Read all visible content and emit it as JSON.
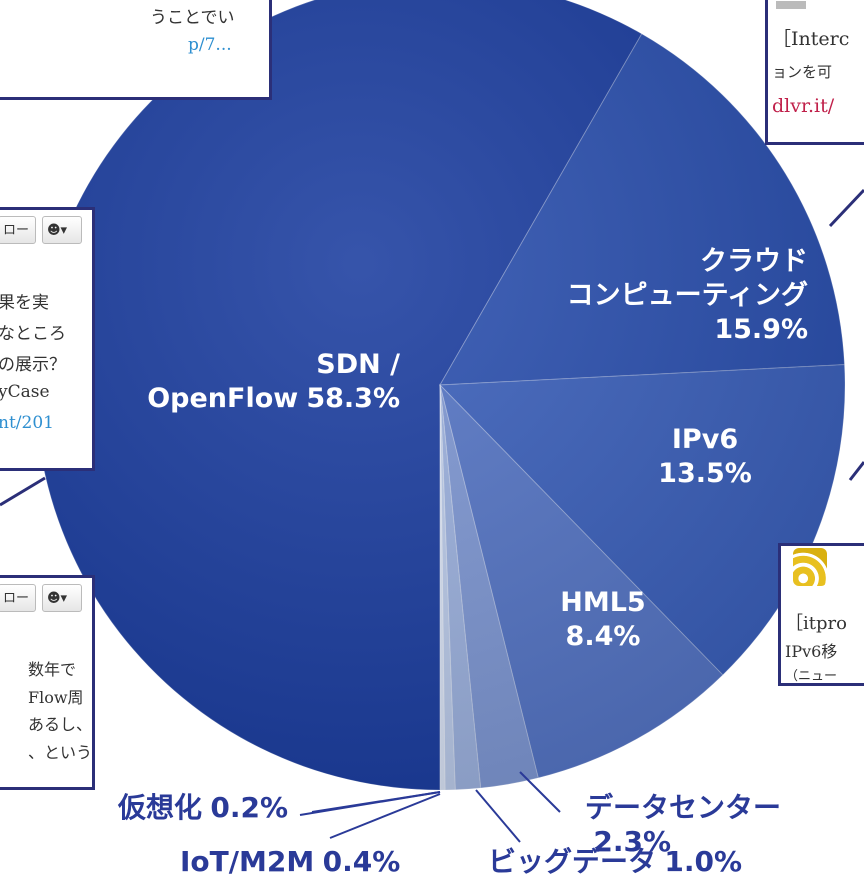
{
  "chart_data": {
    "type": "pie",
    "categories": [
      "SDN /\nOpenFlow",
      "クラウド\nコンピューティング",
      "IPv6",
      "HML5",
      "データセンター",
      "ビッグデータ",
      "IoT/M2M",
      "仮想化"
    ],
    "values": [
      58.3,
      15.9,
      13.5,
      8.4,
      2.3,
      1.0,
      0.4,
      0.2
    ],
    "value_labels": [
      "58.3%",
      "15.9%",
      "13.5%",
      "8.4%",
      "2.3%",
      "1.0%",
      "0.4%",
      "0.2%"
    ],
    "colors": [
      "#1b3d9f",
      "#2a4fae",
      "#3a5fba",
      "#5474c4",
      "#7d96d2",
      "#9bb0dd",
      "#b9c9e8",
      "#d6e0f3"
    ]
  },
  "callouts": [
    {
      "lines": [
        "うことでい",
        "p/7..."
      ]
    },
    {
      "lines": [
        "［Interc",
        "ョンを可",
        "dlvr.it/"
      ]
    },
    {
      "button": "ロー",
      "lines": [
        "果を実",
        "なところ",
        "の展示？",
        "yCase",
        "nt/201"
      ]
    },
    {
      "button": "ロー",
      "lines": [
        "数年で",
        "Flow周",
        "あるし、",
        "、という"
      ]
    },
    {
      "lines": [
        "［itpro",
        "IPv6移",
        "（ニュー"
      ]
    }
  ]
}
